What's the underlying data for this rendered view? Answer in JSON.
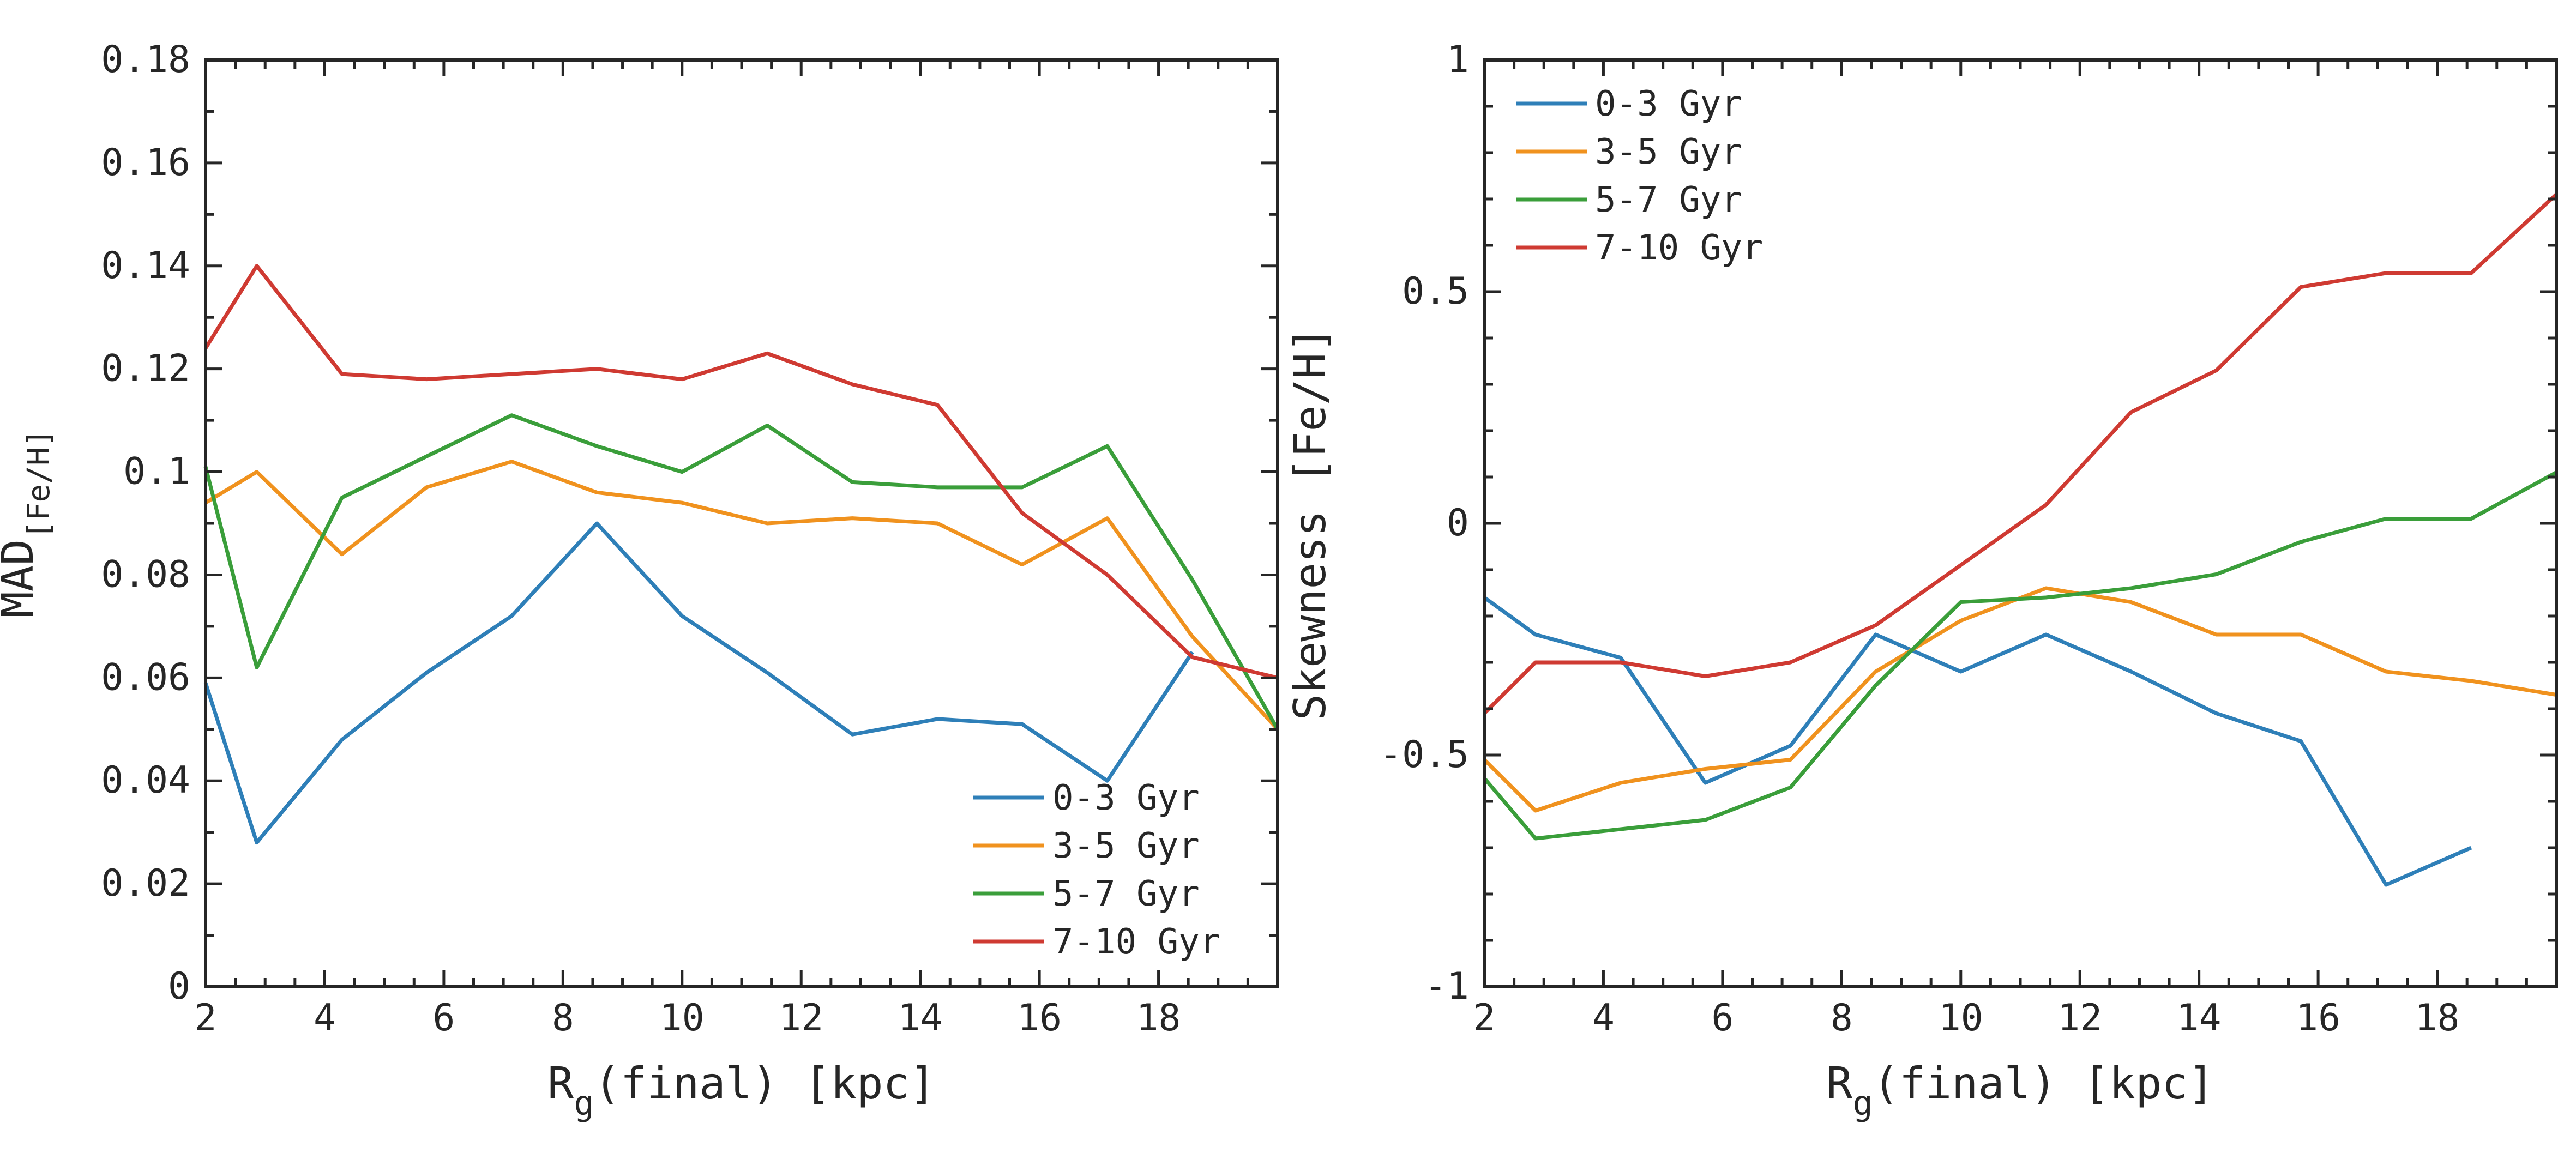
{
  "chart_data": [
    {
      "type": "line",
      "panel": "left",
      "xlabel_main": "R",
      "xlabel_sub": "g",
      "xlabel_rest": "(final) [kpc]",
      "ylabel_main": "MAD",
      "ylabel_sub": "[Fe/H]",
      "xlim": [
        2,
        20
      ],
      "ylim": [
        0,
        0.18
      ],
      "xticks": [
        2,
        4,
        6,
        8,
        10,
        12,
        14,
        16,
        18
      ],
      "xtick_labels": [
        "2",
        "4",
        "6",
        "8",
        "10",
        "12",
        "14",
        "16",
        "18"
      ],
      "yticks": [
        0,
        0.02,
        0.04,
        0.06,
        0.08,
        0.1,
        0.12,
        0.14,
        0.16,
        0.18
      ],
      "ytick_labels": [
        "0",
        "0.02",
        "0.04",
        "0.06",
        "0.08",
        "0.1",
        "0.12",
        "0.14",
        "0.16",
        "0.18"
      ],
      "legend_position": "bottom-right",
      "x": [
        2.0,
        2.86,
        4.29,
        5.71,
        7.14,
        8.57,
        10.0,
        11.43,
        12.86,
        14.29,
        15.71,
        17.14,
        18.57,
        20.0
      ],
      "series": [
        {
          "name": "0-3 Gyr",
          "color": "#2e7fb8",
          "values": [
            0.059,
            0.028,
            0.048,
            0.061,
            0.072,
            0.09,
            0.072,
            0.061,
            0.049,
            0.052,
            0.051,
            0.04,
            0.065,
            null
          ]
        },
        {
          "name": "3-5 Gyr",
          "color": "#f0921e",
          "values": [
            0.094,
            0.1,
            0.084,
            0.097,
            0.102,
            0.096,
            0.094,
            0.09,
            0.091,
            0.09,
            0.082,
            0.091,
            0.068,
            0.05
          ]
        },
        {
          "name": "5-7 Gyr",
          "color": "#3a9e3a",
          "values": [
            0.101,
            0.062,
            0.095,
            0.103,
            0.111,
            0.105,
            0.1,
            0.109,
            0.098,
            0.097,
            0.097,
            0.105,
            0.079,
            0.05
          ]
        },
        {
          "name": "7-10 Gyr",
          "color": "#cf3a32",
          "values": [
            0.124,
            0.14,
            0.119,
            0.118,
            0.119,
            0.12,
            0.118,
            0.123,
            0.117,
            0.113,
            0.092,
            0.08,
            0.064,
            0.06
          ]
        }
      ]
    },
    {
      "type": "line",
      "panel": "right",
      "xlabel_main": "R",
      "xlabel_sub": "g",
      "xlabel_rest": "(final) [kpc]",
      "ylabel_main": "Skewness [Fe/H]",
      "ylabel_sub": "",
      "xlim": [
        2,
        20
      ],
      "ylim": [
        -1,
        1
      ],
      "xticks": [
        2,
        4,
        6,
        8,
        10,
        12,
        14,
        16,
        18
      ],
      "xtick_labels": [
        "2",
        "4",
        "6",
        "8",
        "10",
        "12",
        "14",
        "16",
        "18"
      ],
      "yticks": [
        -1,
        -0.5,
        0,
        0.5,
        1
      ],
      "ytick_labels": [
        "-1",
        "-0.5",
        "0",
        "0.5",
        "1"
      ],
      "legend_position": "top-left",
      "x": [
        2.0,
        2.86,
        4.29,
        5.71,
        7.14,
        8.57,
        10.0,
        11.43,
        12.86,
        14.29,
        15.71,
        17.14,
        18.57,
        20.0
      ],
      "series": [
        {
          "name": "0-3 Gyr",
          "color": "#2e7fb8",
          "values": [
            -0.16,
            -0.24,
            -0.29,
            -0.56,
            -0.48,
            -0.24,
            -0.32,
            -0.24,
            -0.32,
            -0.41,
            -0.47,
            -0.78,
            -0.7,
            null
          ]
        },
        {
          "name": "3-5 Gyr",
          "color": "#f0921e",
          "values": [
            -0.51,
            -0.62,
            -0.56,
            -0.53,
            -0.51,
            -0.32,
            -0.21,
            -0.14,
            -0.17,
            -0.24,
            -0.24,
            -0.32,
            -0.34,
            -0.37
          ]
        },
        {
          "name": "5-7 Gyr",
          "color": "#3a9e3a",
          "values": [
            -0.55,
            -0.68,
            -0.66,
            -0.64,
            -0.57,
            -0.35,
            -0.17,
            -0.16,
            -0.14,
            -0.11,
            -0.04,
            0.01,
            0.01,
            0.11
          ]
        },
        {
          "name": "7-10 Gyr",
          "color": "#cf3a32",
          "values": [
            -0.41,
            -0.3,
            -0.3,
            -0.33,
            -0.3,
            -0.22,
            -0.09,
            0.04,
            0.24,
            0.33,
            0.51,
            0.54,
            0.54,
            0.71
          ]
        }
      ]
    }
  ]
}
